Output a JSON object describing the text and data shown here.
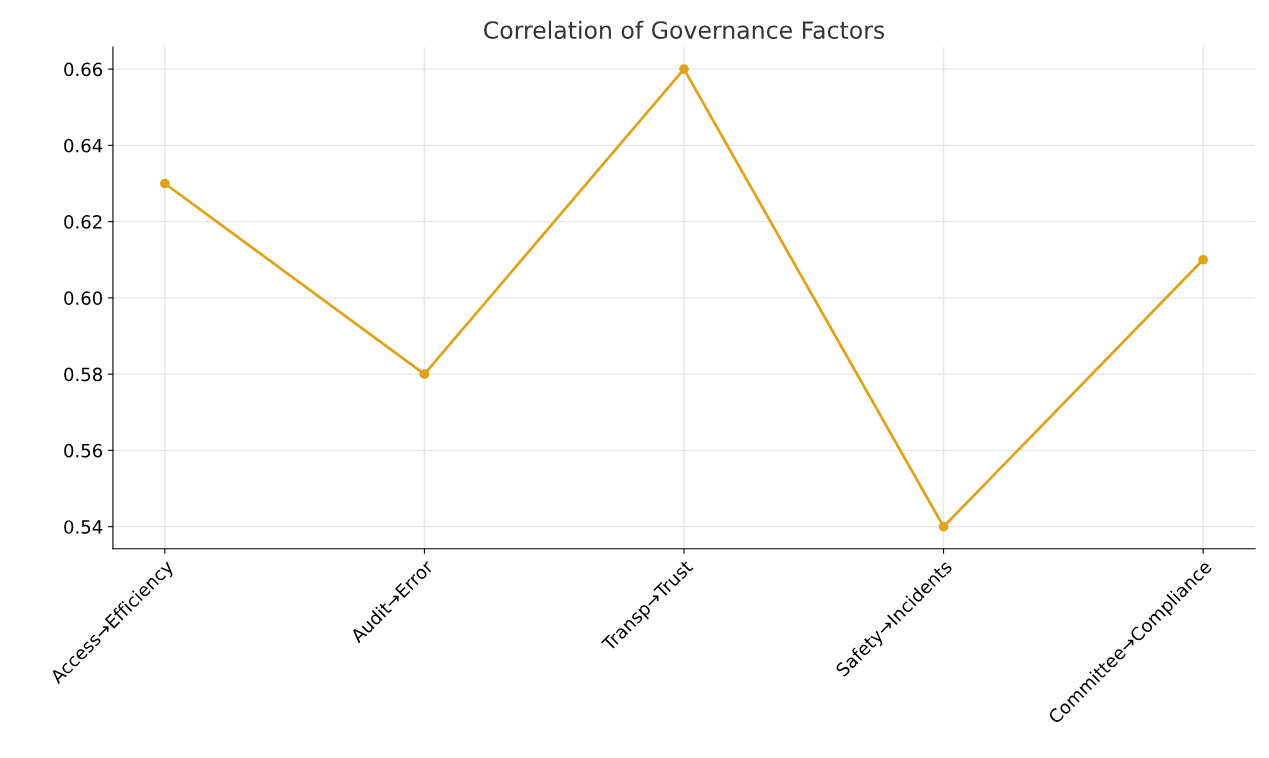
{
  "chart_data": {
    "type": "line",
    "title": "Correlation of Governance Factors",
    "categories": [
      "Access→Efficiency",
      "Audit→Error",
      "Transp→Trust",
      "Safety→Incidents",
      "Committee→Compliance"
    ],
    "series": [
      {
        "color": "#e0a31c",
        "values": [
          0.63,
          0.58,
          0.66,
          0.54,
          0.61
        ]
      }
    ],
    "ylim": [
      0.5342,
      0.6658
    ],
    "yticks": [
      0.54,
      0.56,
      0.58,
      {
        "value": 0.6,
        "label": "0.60"
      },
      0.62,
      0.64,
      0.66
    ],
    "grid": true,
    "marker": "circle",
    "line_style": "solid",
    "legend": false
  }
}
